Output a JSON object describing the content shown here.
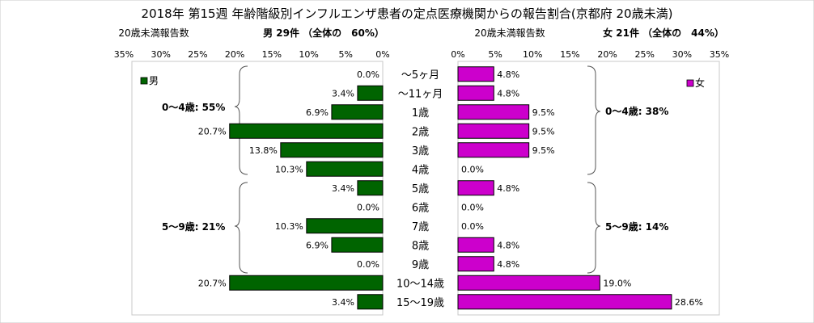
{
  "chart_data": {
    "type": "bar",
    "title": "2018年 第15週 年齢階級別インフルエンザ患者の定点医療機関からの報告割合(京都府 20歳未満)",
    "left_subtitle": "20歳未満報告数",
    "right_subtitle": "20歳未満報告数",
    "male_heading": "男 29件 （全体の　60%）",
    "female_heading": "女 21件 （全体の　44%）",
    "left_ticks": [
      "35%",
      "30%",
      "25%",
      "20%",
      "15%",
      "10%",
      "5%",
      "0%"
    ],
    "right_ticks": [
      "0%",
      "5%",
      "10%",
      "15%",
      "20%",
      "25%",
      "30%",
      "35%"
    ],
    "xlim": [
      0,
      35
    ],
    "categories": [
      "〜5ヶ月",
      "〜11ヶ月",
      "1歳",
      "2歳",
      "3歳",
      "4歳",
      "5歳",
      "6歳",
      "7歳",
      "8歳",
      "9歳",
      "10〜14歳",
      "15〜19歳"
    ],
    "series": [
      {
        "name": "男",
        "color": "#006400",
        "values": [
          0.0,
          3.4,
          6.9,
          20.7,
          13.8,
          10.3,
          3.4,
          0.0,
          10.3,
          6.9,
          0.0,
          20.7,
          3.4
        ],
        "labels": [
          "0.0%",
          "3.4%",
          "6.9%",
          "20.7%",
          "13.8%",
          "10.3%",
          "3.4%",
          "0.0%",
          "10.3%",
          "6.9%",
          "0.0%",
          "20.7%",
          "3.4%"
        ]
      },
      {
        "name": "女",
        "color": "#cc00cc",
        "values": [
          4.8,
          4.8,
          9.5,
          9.5,
          9.5,
          0.0,
          4.8,
          0.0,
          0.0,
          4.8,
          4.8,
          19.0,
          28.6
        ],
        "labels": [
          "4.8%",
          "4.8%",
          "9.5%",
          "9.5%",
          "9.5%",
          "0.0%",
          "4.8%",
          "0.0%",
          "0.0%",
          "4.8%",
          "4.8%",
          "19.0%",
          "28.6%"
        ]
      }
    ],
    "annotations": {
      "male_0_4": "0〜4歳: 55%",
      "male_5_9": "5〜9歳: 21%",
      "female_0_4": "0〜4歳: 38%",
      "female_5_9": "5〜9歳: 14%"
    },
    "legend": {
      "male": "男",
      "female": "女",
      "male_position": "top-left",
      "female_position": "top-right"
    }
  }
}
